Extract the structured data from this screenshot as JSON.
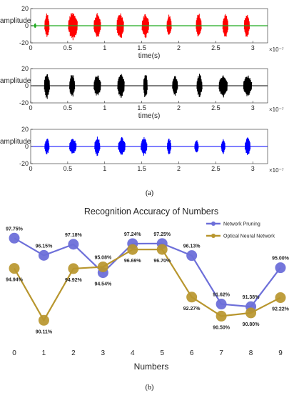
{
  "chart_data": [
    {
      "type": "line",
      "panel": "top",
      "ylabel": "amplitude",
      "xlabel": "time(s)",
      "x_multiplier": "×10⁻⁷",
      "xlim": [
        0,
        3.2
      ],
      "ylim": [
        -20,
        20
      ],
      "x_ticks": [
        "0",
        "0.5",
        "1",
        "1.5",
        "2",
        "2.5",
        "3"
      ],
      "y_ticks": [
        "-20",
        "0",
        "20"
      ],
      "series": [
        {
          "color": "#ff0000",
          "bursts": [
            {
              "center": 0.22,
              "width": 0.06,
              "amp": 15
            },
            {
              "center": 0.57,
              "width": 0.12,
              "amp": 17
            },
            {
              "center": 0.9,
              "width": 0.09,
              "amp": 15
            },
            {
              "center": 1.21,
              "width": 0.09,
              "amp": 16
            },
            {
              "center": 1.55,
              "width": 0.09,
              "amp": 15
            },
            {
              "center": 1.87,
              "width": 0.06,
              "amp": 14
            },
            {
              "center": 2.27,
              "width": 0.07,
              "amp": 15
            },
            {
              "center": 2.63,
              "width": 0.07,
              "amp": 14
            },
            {
              "center": 2.92,
              "width": 0.07,
              "amp": 14
            }
          ]
        },
        {
          "color": "#22aa22",
          "bursts": [
            {
              "center": 0.06,
              "width": 0.02,
              "amp": 3
            }
          ]
        }
      ]
    },
    {
      "type": "line",
      "panel": "middle",
      "ylabel": "amplitude",
      "xlabel": "time(s)",
      "x_multiplier": "×10⁻⁷",
      "xlim": [
        0,
        3.2
      ],
      "ylim": [
        -20,
        20
      ],
      "x_ticks": [
        "0",
        "0.5",
        "1",
        "1.5",
        "2",
        "2.5",
        "3"
      ],
      "y_ticks": [
        "-20",
        "0",
        "20"
      ],
      "series": [
        {
          "color": "#000000",
          "bursts": [
            {
              "center": 0.22,
              "width": 0.07,
              "amp": 16
            },
            {
              "center": 0.56,
              "width": 0.07,
              "amp": 15
            },
            {
              "center": 0.9,
              "width": 0.09,
              "amp": 13
            },
            {
              "center": 1.22,
              "width": 0.09,
              "amp": 15
            },
            {
              "center": 1.55,
              "width": 0.05,
              "amp": 16
            },
            {
              "center": 1.95,
              "width": 0.07,
              "amp": 13
            },
            {
              "center": 2.28,
              "width": 0.07,
              "amp": 14
            },
            {
              "center": 2.6,
              "width": 0.11,
              "amp": 14
            },
            {
              "center": 2.93,
              "width": 0.11,
              "amp": 13
            }
          ]
        }
      ]
    },
    {
      "type": "line",
      "panel": "bottom",
      "ylabel": "amplitude",
      "xlabel": "",
      "x_multiplier": "×10⁻⁷",
      "xlim": [
        0,
        3.2
      ],
      "ylim": [
        -20,
        20
      ],
      "x_ticks": [
        "0",
        "0.5",
        "1",
        "1.5",
        "2",
        "2.5",
        "3"
      ],
      "y_ticks": [
        "-20",
        "0",
        "20"
      ],
      "series": [
        {
          "color": "#0000ff",
          "bursts": [
            {
              "center": 0.22,
              "width": 0.06,
              "amp": 10
            },
            {
              "center": 0.57,
              "width": 0.09,
              "amp": 10
            },
            {
              "center": 0.9,
              "width": 0.07,
              "amp": 12
            },
            {
              "center": 1.23,
              "width": 0.09,
              "amp": 11
            },
            {
              "center": 1.53,
              "width": 0.08,
              "amp": 11
            },
            {
              "center": 1.87,
              "width": 0.05,
              "amp": 10
            },
            {
              "center": 2.24,
              "width": 0.05,
              "amp": 9
            },
            {
              "center": 2.6,
              "width": 0.05,
              "amp": 9
            },
            {
              "center": 2.93,
              "width": 0.07,
              "amp": 11
            }
          ]
        }
      ]
    },
    {
      "type": "line",
      "panel": "accuracy",
      "title": "Recognition Accuracy of Numbers",
      "xlabel": "Numbers",
      "ylabel": "",
      "categories": [
        "0",
        "1",
        "2",
        "3",
        "4",
        "5",
        "6",
        "7",
        "8",
        "9"
      ],
      "ylim": [
        89,
        98.5
      ],
      "legend_position": "top-right",
      "series": [
        {
          "name": "Network Pruning",
          "color": "#6d6fd9",
          "values": [
            97.75,
            96.15,
            97.18,
            94.54,
            97.24,
            97.25,
            96.13,
            91.62,
            91.38,
            95.0
          ],
          "labels": [
            "97.75%",
            "96.15%",
            "97.18%",
            "94.54%",
            "97.24%",
            "97.25%",
            "96.13%",
            "91.62%",
            "91.38%",
            "95.00%"
          ]
        },
        {
          "name": "Optical Neural Network",
          "color": "#b8962e",
          "values": [
            94.94,
            90.11,
            94.92,
            95.08,
            96.69,
            96.7,
            92.27,
            90.5,
            90.8,
            92.22
          ],
          "labels": [
            "94.94%",
            "90.11%",
            "94.92%",
            "95.08%",
            "96.69%",
            "96.70%",
            "92.27%",
            "90.50%",
            "90.80%",
            "92.22%"
          ]
        }
      ]
    }
  ],
  "captions": {
    "a": "(a)",
    "b": "(b)"
  }
}
